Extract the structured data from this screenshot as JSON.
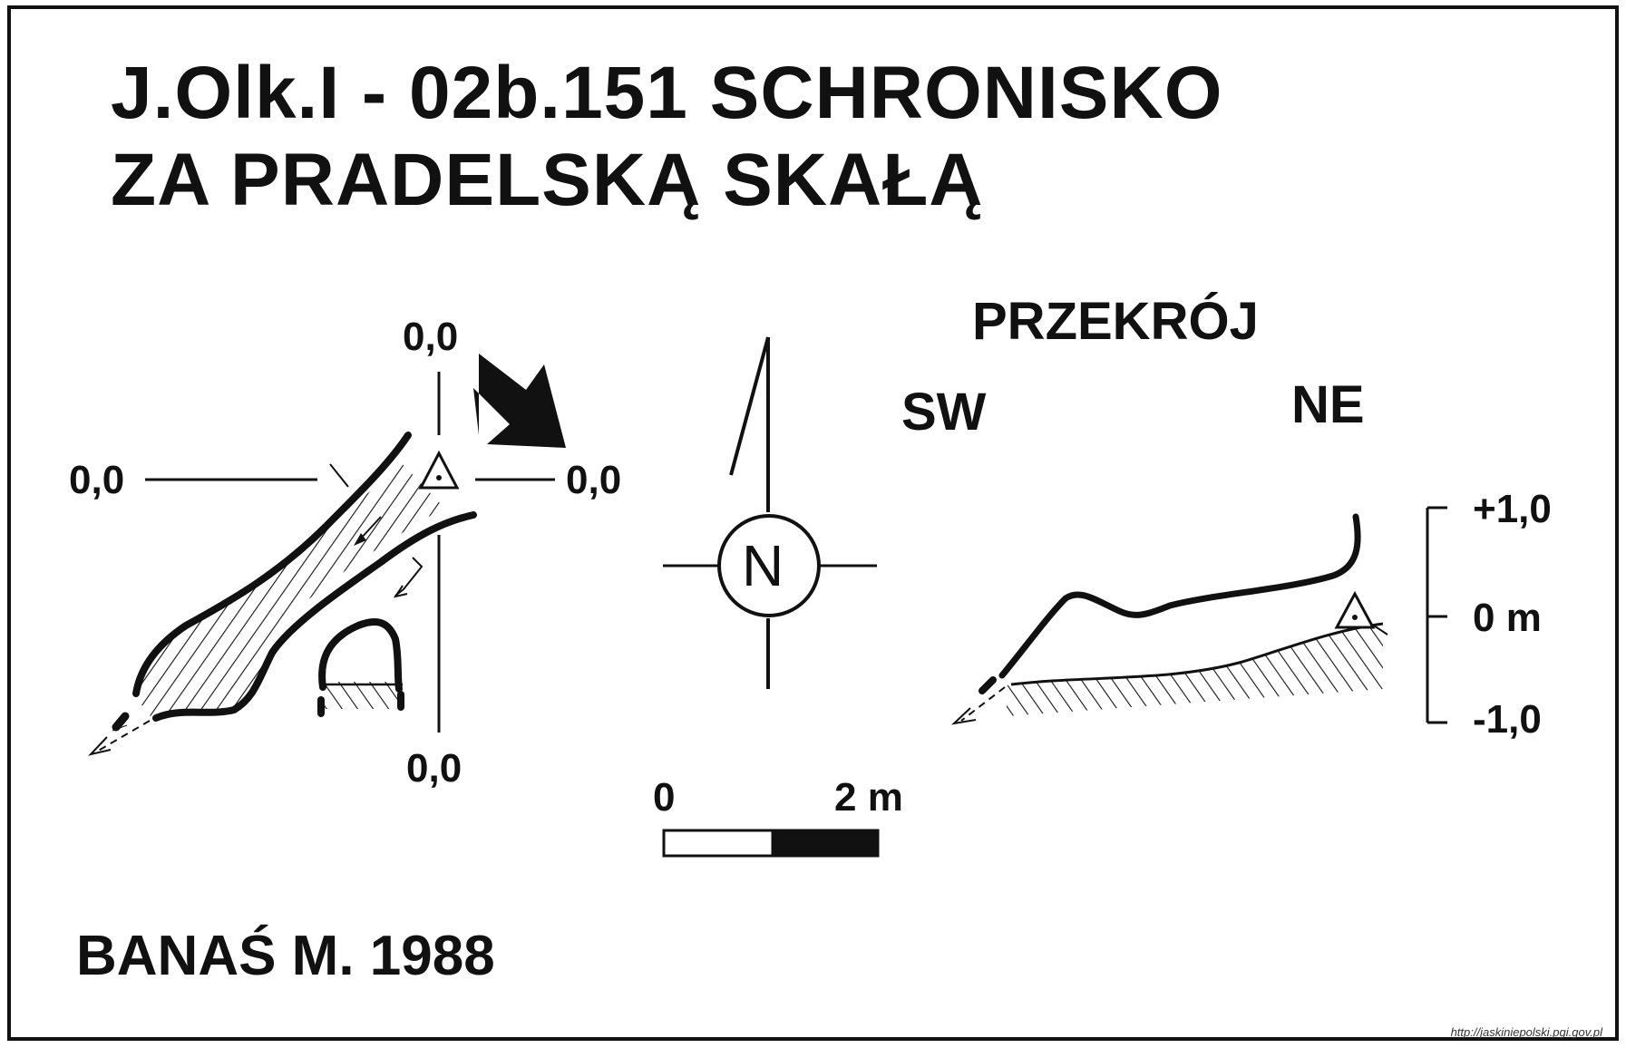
{
  "title": {
    "line1": "J.Olk.I - 02b.151  SCHRONISKO",
    "line2": "ZA PRADELSKĄ SKAŁĄ"
  },
  "plan": {
    "axis_top": "0,0",
    "axis_left": "0,0",
    "axis_right": "0,0",
    "axis_bottom": "0,0"
  },
  "compass": {
    "north_letter": "N"
  },
  "scale_bar": {
    "start_label": "0",
    "end_label": "2 m"
  },
  "section": {
    "title": "PRZEKRÓJ",
    "dir_left": "SW",
    "dir_right": "NE",
    "elev_top": "+1,0",
    "elev_mid": "0 m",
    "elev_bottom": "-1,0"
  },
  "author": "BANAŚ M. 1988",
  "source": "http://jaskiniepolski.pgi.gov.pl"
}
